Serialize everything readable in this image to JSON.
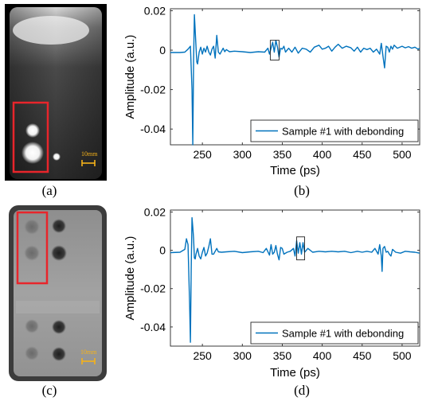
{
  "panels": {
    "a": "(a)",
    "b": "(b)",
    "c": "(c)",
    "d": "(d)"
  },
  "images": {
    "a": {
      "scale_label": "10mm",
      "scale_color": "#f5b21a",
      "box_color": "#e8252b"
    },
    "c": {
      "scale_label": "10mm",
      "scale_color": "#f5b21a",
      "box_color": "#e8252b"
    }
  },
  "chart_data": [
    {
      "type": "line",
      "panel": "b",
      "xlabel": "Time (ps)",
      "ylabel": "Amplitude (a.u.)",
      "xlim": [
        210,
        522
      ],
      "ylim": [
        -0.048,
        0.021
      ],
      "xticks": [
        250,
        300,
        350,
        400,
        450,
        500
      ],
      "yticks": [
        0.02,
        0,
        -0.02,
        -0.04
      ],
      "ytick_labels": [
        "0.02",
        "0",
        "-0.02",
        "-0.04"
      ],
      "grid": false,
      "legend_position": "bottom-right",
      "line_color": "#0072bd",
      "highlight_box": {
        "x": [
          335,
          346
        ],
        "y": [
          -0.005,
          0.005
        ]
      },
      "series": [
        {
          "name": "Sample #1 with debonding",
          "x": [
            210,
            222,
            228,
            232,
            235,
            237,
            238,
            239,
            240,
            241,
            242,
            243,
            244,
            246,
            248,
            250,
            252,
            254,
            256,
            258,
            260,
            262,
            264,
            266,
            268,
            270,
            272,
            274,
            276,
            278,
            280,
            284,
            290,
            300,
            310,
            320,
            328,
            332,
            334,
            336,
            338,
            340,
            342,
            344,
            346,
            348,
            350,
            352,
            354,
            358,
            362,
            366,
            370,
            375,
            380,
            385,
            390,
            396,
            400,
            404,
            408,
            412,
            416,
            420,
            425,
            430,
            436,
            440,
            444,
            448,
            452,
            456,
            460,
            464,
            468,
            472,
            474,
            476,
            478,
            480,
            482,
            484,
            486,
            488,
            490,
            494,
            500,
            504,
            508,
            512,
            516,
            520,
            522
          ],
          "y": [
            -0.0012,
            -0.0012,
            -0.001,
            0.0005,
            0.002,
            -0.02,
            -0.048,
            -0.005,
            0.018,
            0.01,
            0.002,
            -0.006,
            -0.007,
            -0.001,
            0.0015,
            -0.002,
            0.001,
            -0.001,
            0.002,
            -0.001,
            -0.0025,
            0.0005,
            0.002,
            -0.004,
            0.0075,
            -0.001,
            -0.002,
            -0.0005,
            0.001,
            -0.0008,
            0.0003,
            -0.0008,
            -0.0005,
            -0.0008,
            -0.0012,
            -0.0008,
            -0.001,
            0.001,
            -0.002,
            0.001,
            0.004,
            -0.001,
            0.005,
            0.0015,
            -0.0035,
            0.001,
            0.0005,
            0.002,
            -0.001,
            0.001,
            -0.001,
            0.0015,
            -0.0015,
            0.001,
            0.0005,
            -0.001,
            0.0015,
            0.0025,
            0.0005,
            0.001,
            0.002,
            -0.0005,
            0.0015,
            0.003,
            0.001,
            0.002,
            0.0012,
            -0.0005,
            0.0015,
            -0.001,
            0.001,
            0.0003,
            0.001,
            -0.001,
            0.0005,
            -0.002,
            0.0035,
            -0.003,
            -0.009,
            0.002,
            0.0015,
            -0.001,
            0.002,
            0.0005,
            0.0025,
            0.001,
            0.002,
            0.0012,
            0.0018,
            0.001,
            0.0015,
            0.0005,
            0.001
          ]
        }
      ]
    },
    {
      "type": "line",
      "panel": "d",
      "xlabel": "Time (ps)",
      "ylabel": "Amplitude (a.u.)",
      "xlim": [
        210,
        522
      ],
      "ylim": [
        -0.05,
        0.021
      ],
      "xticks": [
        250,
        300,
        350,
        400,
        450,
        500
      ],
      "yticks": [
        0.02,
        0,
        -0.02,
        -0.04
      ],
      "ytick_labels": [
        "0.02",
        "0",
        "-0.02",
        "-0.04"
      ],
      "grid": false,
      "legend_position": "bottom-right",
      "line_color": "#0072bd",
      "highlight_box": {
        "x": [
          368,
          378
        ],
        "y": [
          -0.005,
          0.007
        ]
      },
      "series": [
        {
          "name": "Sample #1 with debonding",
          "x": [
            210,
            222,
            228,
            230,
            232,
            234,
            235,
            236,
            237,
            238,
            239,
            240,
            241,
            242,
            244,
            246,
            248,
            250,
            252,
            254,
            256,
            258,
            260,
            262,
            264,
            266,
            268,
            270,
            274,
            280,
            290,
            300,
            310,
            320,
            326,
            330,
            334,
            336,
            338,
            340,
            342,
            344,
            346,
            348,
            350,
            352,
            356,
            360,
            364,
            366,
            368,
            370,
            372,
            374,
            376,
            378,
            382,
            388,
            396,
            404,
            412,
            420,
            428,
            436,
            444,
            450,
            456,
            462,
            466,
            470,
            472,
            474,
            475,
            476,
            478,
            480,
            482,
            484,
            486,
            488,
            492,
            498,
            504,
            510,
            516,
            522
          ],
          "y": [
            -0.0012,
            -0.001,
            0.0005,
            0.006,
            0.003,
            -0.028,
            -0.048,
            -0.01,
            0.017,
            0.012,
            0.006,
            -0.004,
            -0.0045,
            -0.002,
            0.001,
            -0.003,
            -0.0045,
            -0.001,
            0.0015,
            -0.003,
            -0.0015,
            0.002,
            0.006,
            -0.002,
            -0.002,
            -0.0005,
            0.001,
            -0.0008,
            -0.001,
            -0.0008,
            -0.0005,
            -0.0012,
            -0.0008,
            -0.0005,
            -0.0012,
            0.001,
            -0.0025,
            0.003,
            -0.002,
            -0.001,
            0.0025,
            -0.002,
            -0.005,
            0.0015,
            0.001,
            -0.002,
            -0.001,
            -0.0005,
            0.001,
            -0.003,
            0.005,
            -0.0015,
            0.004,
            -0.002,
            0.004,
            -0.001,
            0.001,
            -0.001,
            -0.0005,
            -0.0008,
            -0.0005,
            -0.0008,
            -0.0005,
            -0.0012,
            -0.0005,
            -0.001,
            -0.0005,
            -0.001,
            0.001,
            -0.002,
            0.003,
            -0.003,
            -0.011,
            0.001,
            0.002,
            -0.001,
            -0.0005,
            -0.002,
            -0.003,
            0.0005,
            -0.001,
            -0.0015,
            -0.0005,
            -0.0008,
            -0.001,
            -0.0015
          ]
        }
      ]
    }
  ]
}
